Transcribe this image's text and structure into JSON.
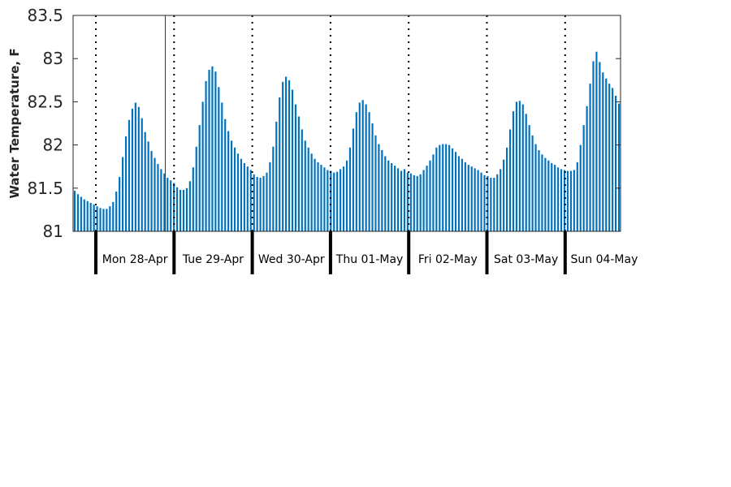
{
  "chart_data": {
    "type": "bar",
    "title": "",
    "xlabel": "",
    "ylabel": "Water Temperature, F",
    "ylim": [
      81,
      83.5
    ],
    "yticks": [
      "81",
      "81.5",
      "82",
      "82.5",
      "83",
      "83.5"
    ],
    "grid": false,
    "bar_color": "#0072BD",
    "marker_color": "#C00000",
    "days": [
      "Mon 28-Apr",
      "Tue 29-Apr",
      "Wed 30-Apr",
      "Thu 01-May",
      "Fri 02-May",
      "Sat 03-May",
      "Sun 04-May"
    ],
    "series": [
      {
        "values": [
          81.47,
          81.43,
          81.4,
          81.37,
          81.35,
          81.33,
          81.31,
          81.29,
          81.27,
          81.26,
          81.26,
          81.29,
          81.34,
          81.46,
          81.63,
          81.86,
          82.1,
          82.29,
          82.42,
          82.49,
          82.44,
          82.31,
          82.15,
          82.04,
          81.93,
          81.85,
          81.78,
          81.72,
          81.67,
          81.62,
          81.59,
          81.56,
          81.51,
          81.48,
          81.48,
          81.5,
          81.58,
          81.74,
          81.98,
          82.23,
          82.5,
          82.74,
          82.87,
          82.91,
          82.85,
          82.67,
          82.49,
          82.3,
          82.16,
          82.05,
          81.97,
          81.9,
          81.84,
          81.79,
          81.75,
          81.71,
          81.66,
          81.63,
          81.62,
          81.64,
          81.68,
          81.8,
          81.98,
          82.27,
          82.55,
          82.73,
          82.79,
          82.75,
          82.64,
          82.47,
          82.33,
          82.18,
          82.05,
          81.97,
          81.9,
          81.84,
          81.8,
          81.77,
          81.74,
          81.71,
          81.7,
          81.68,
          81.69,
          81.72,
          81.75,
          81.82,
          81.97,
          82.19,
          82.38,
          82.49,
          82.52,
          82.47,
          82.38,
          82.25,
          82.11,
          82.01,
          81.94,
          81.87,
          81.82,
          81.79,
          81.76,
          81.73,
          81.7,
          81.72,
          81.68,
          81.67,
          81.65,
          81.64,
          81.66,
          81.71,
          81.76,
          81.82,
          81.89,
          81.97,
          82.0,
          82.01,
          82.01,
          82.0,
          81.96,
          81.92,
          81.87,
          81.84,
          81.8,
          81.77,
          81.75,
          81.73,
          81.71,
          81.68,
          81.65,
          81.64,
          81.62,
          81.62,
          81.66,
          81.72,
          81.83,
          81.97,
          82.18,
          82.39,
          82.5,
          82.51,
          82.47,
          82.36,
          82.23,
          82.11,
          82.01,
          81.94,
          81.89,
          81.85,
          81.82,
          81.79,
          81.77,
          81.74,
          81.72,
          81.71,
          81.7,
          81.7,
          81.71,
          81.8,
          82.0,
          82.23,
          82.45,
          82.71,
          82.97,
          83.08,
          82.96,
          82.84,
          82.77,
          82.71,
          82.66,
          82.57,
          82.48
        ]
      }
    ]
  }
}
